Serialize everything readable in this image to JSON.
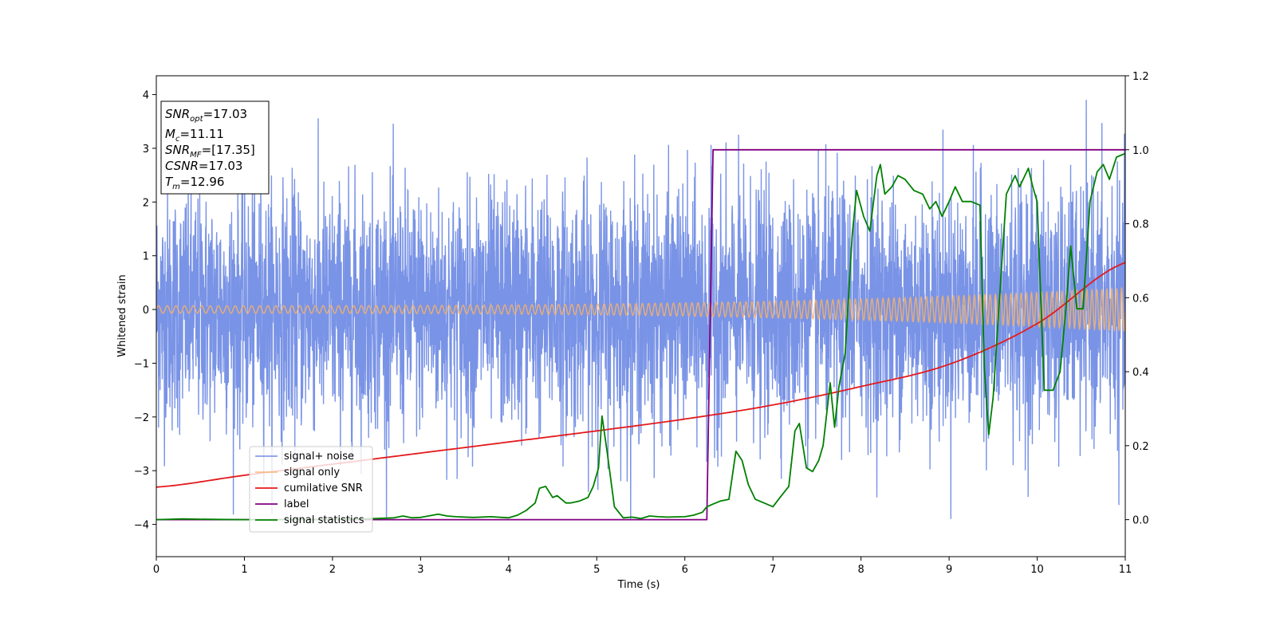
{
  "chart_data": {
    "type": "line",
    "xlabel": "Time (s)",
    "ylabel": "Whitened strain",
    "xlim": [
      0,
      11
    ],
    "ylim": [
      -4.6,
      4.35
    ],
    "y2lim": [
      -0.1,
      1.2
    ],
    "x_ticks": [
      0,
      1,
      2,
      3,
      4,
      5,
      6,
      7,
      8,
      9,
      10,
      11
    ],
    "y_ticks": [
      4,
      3,
      2,
      1,
      0,
      -1,
      -2,
      -3,
      -4
    ],
    "y_tick_labels": [
      "4",
      "3",
      "2",
      "1",
      "0",
      "−1",
      "−2",
      "−3",
      "−4"
    ],
    "y2_ticks": [
      1.2,
      1.0,
      0.8,
      0.6,
      0.4,
      0.2,
      0.0
    ],
    "y2_tick_labels": [
      "1.2",
      "1.0",
      "0.8",
      "0.6",
      "0.4",
      "0.2",
      "0.0"
    ],
    "legend_position": "lower-left",
    "info_box": {
      "snr_opt": {
        "sym": "SNR",
        "sub": "opt",
        "value": "=17.03"
      },
      "mc": {
        "sym": "M",
        "sub": "c",
        "value": "=11.11"
      },
      "snr_mf": {
        "sym": "SNR",
        "sub": "MF",
        "value": "=[17.35]"
      },
      "csnr": {
        "sym": "CSNR",
        "value": "=17.03"
      },
      "tm": {
        "sym": "T",
        "sub": "m",
        "value": "=12.96"
      }
    },
    "series": [
      {
        "name": "signal+ noise",
        "color": "#5b7be0",
        "axis": "left",
        "noise_std": 1.1,
        "noise_peak": 3.9
      },
      {
        "name": "signal only",
        "color": "#f5b26b",
        "axis": "left",
        "amplitude_start": 0.07,
        "amplitude_end": 0.4,
        "frequency_start_hz": 10,
        "frequency_end_hz": 18
      },
      {
        "name": "cumilative SNR",
        "color": "#e41a1c",
        "axis": "right",
        "x": [
          0,
          1,
          2,
          3,
          4,
          5,
          6,
          7,
          8,
          9,
          10,
          11
        ],
        "y": [
          0.088,
          0.12,
          0.15,
          0.18,
          0.21,
          0.24,
          0.272,
          0.31,
          0.36,
          0.42,
          0.53,
          0.695
        ]
      },
      {
        "name": "label",
        "color": "#800080",
        "axis": "right",
        "x": [
          0,
          6.25,
          6.32,
          11
        ],
        "y": [
          0,
          0,
          1,
          1
        ]
      },
      {
        "name": "signal statistics",
        "color": "#008000",
        "axis": "right",
        "x": [
          0,
          0.3,
          0.6,
          1,
          1.5,
          2,
          2.5,
          2.7,
          2.8,
          2.9,
          3.0,
          3.2,
          3.3,
          3.4,
          3.6,
          3.8,
          4.0,
          4.1,
          4.2,
          4.3,
          4.35,
          4.42,
          4.5,
          4.55,
          4.65,
          4.7,
          4.8,
          4.9,
          4.96,
          5.02,
          5.06,
          5.12,
          5.2,
          5.3,
          5.4,
          5.5,
          5.6,
          5.7,
          5.8,
          6.0,
          6.1,
          6.2,
          6.25,
          6.32,
          6.4,
          6.5,
          6.58,
          6.65,
          6.72,
          6.8,
          6.9,
          7.0,
          7.08,
          7.18,
          7.25,
          7.3,
          7.38,
          7.45,
          7.52,
          7.57,
          7.65,
          7.7,
          7.75,
          7.82,
          7.9,
          7.95,
          8.03,
          8.1,
          8.18,
          8.22,
          8.27,
          8.35,
          8.42,
          8.5,
          8.6,
          8.7,
          8.78,
          8.85,
          8.92,
          9.0,
          9.07,
          9.15,
          9.25,
          9.35,
          9.4,
          9.45,
          9.5,
          9.6,
          9.65,
          9.75,
          9.8,
          9.9,
          9.95,
          10.0,
          10.08,
          10.18,
          10.26,
          10.33,
          10.38,
          10.45,
          10.52,
          10.6,
          10.68,
          10.75,
          10.82,
          10.9,
          11.0
        ],
        "y": [
          0,
          0.002,
          0.001,
          0,
          0,
          0,
          0.003,
          0.005,
          0.01,
          0.005,
          0.006,
          0.015,
          0.01,
          0.008,
          0.006,
          0.008,
          0.005,
          0.012,
          0.025,
          0.045,
          0.085,
          0.09,
          0.06,
          0.065,
          0.045,
          0.045,
          0.05,
          0.06,
          0.09,
          0.14,
          0.28,
          0.18,
          0.035,
          0.005,
          0.007,
          0.003,
          0.01,
          0.008,
          0.007,
          0.008,
          0.012,
          0.02,
          0.035,
          0.042,
          0.05,
          0.055,
          0.185,
          0.16,
          0.095,
          0.055,
          0.045,
          0.035,
          0.06,
          0.09,
          0.24,
          0.26,
          0.14,
          0.13,
          0.16,
          0.2,
          0.37,
          0.25,
          0.36,
          0.45,
          0.77,
          0.89,
          0.82,
          0.78,
          0.93,
          0.96,
          0.88,
          0.9,
          0.93,
          0.92,
          0.89,
          0.88,
          0.84,
          0.86,
          0.82,
          0.86,
          0.9,
          0.86,
          0.86,
          0.85,
          0.41,
          0.23,
          0.33,
          0.7,
          0.88,
          0.93,
          0.9,
          0.95,
          0.9,
          0.86,
          0.35,
          0.35,
          0.4,
          0.58,
          0.74,
          0.57,
          0.57,
          0.86,
          0.94,
          0.96,
          0.92,
          0.98,
          0.99
        ]
      }
    ]
  }
}
